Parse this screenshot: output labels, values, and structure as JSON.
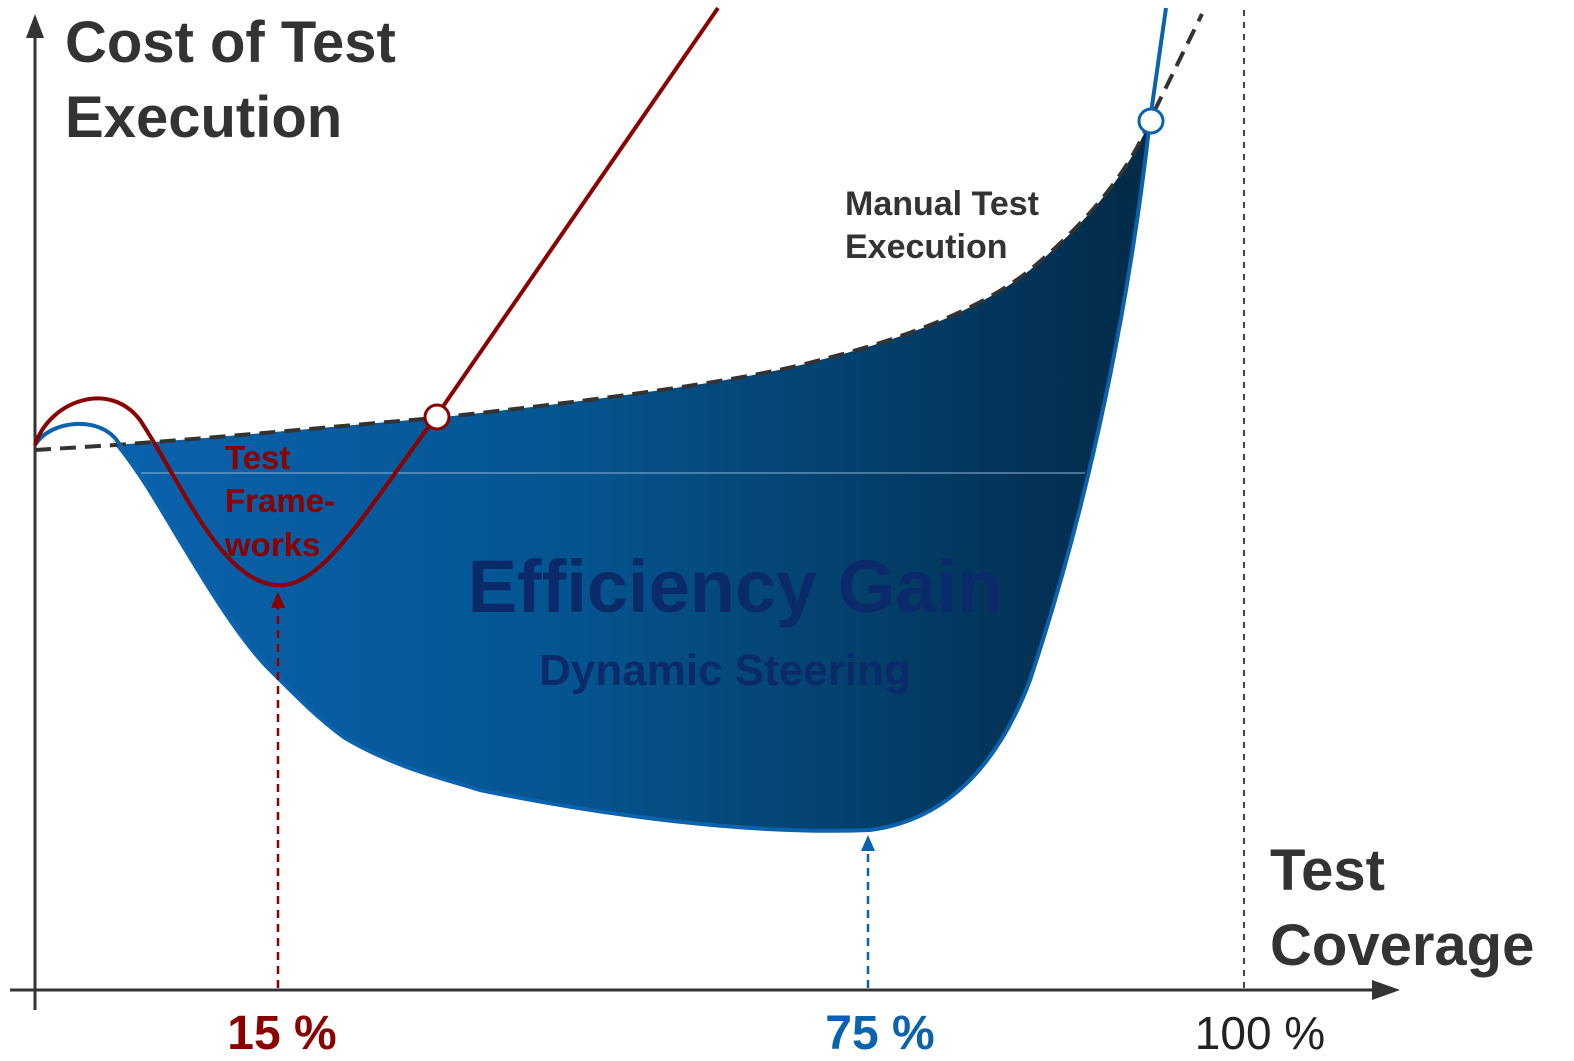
{
  "y_axis_label": [
    "Cost of Test",
    "Execution"
  ],
  "x_axis_label": [
    "Test",
    "Coverage"
  ],
  "manual_label": [
    "Manual Test",
    "Execution"
  ],
  "frameworks_label": [
    "Test",
    "Frame-",
    "works"
  ],
  "area_title": "Efficiency Gain",
  "area_subtitle": "Dynamic Steering",
  "markers": [
    "15 %",
    "75 %",
    "100 %"
  ]
}
